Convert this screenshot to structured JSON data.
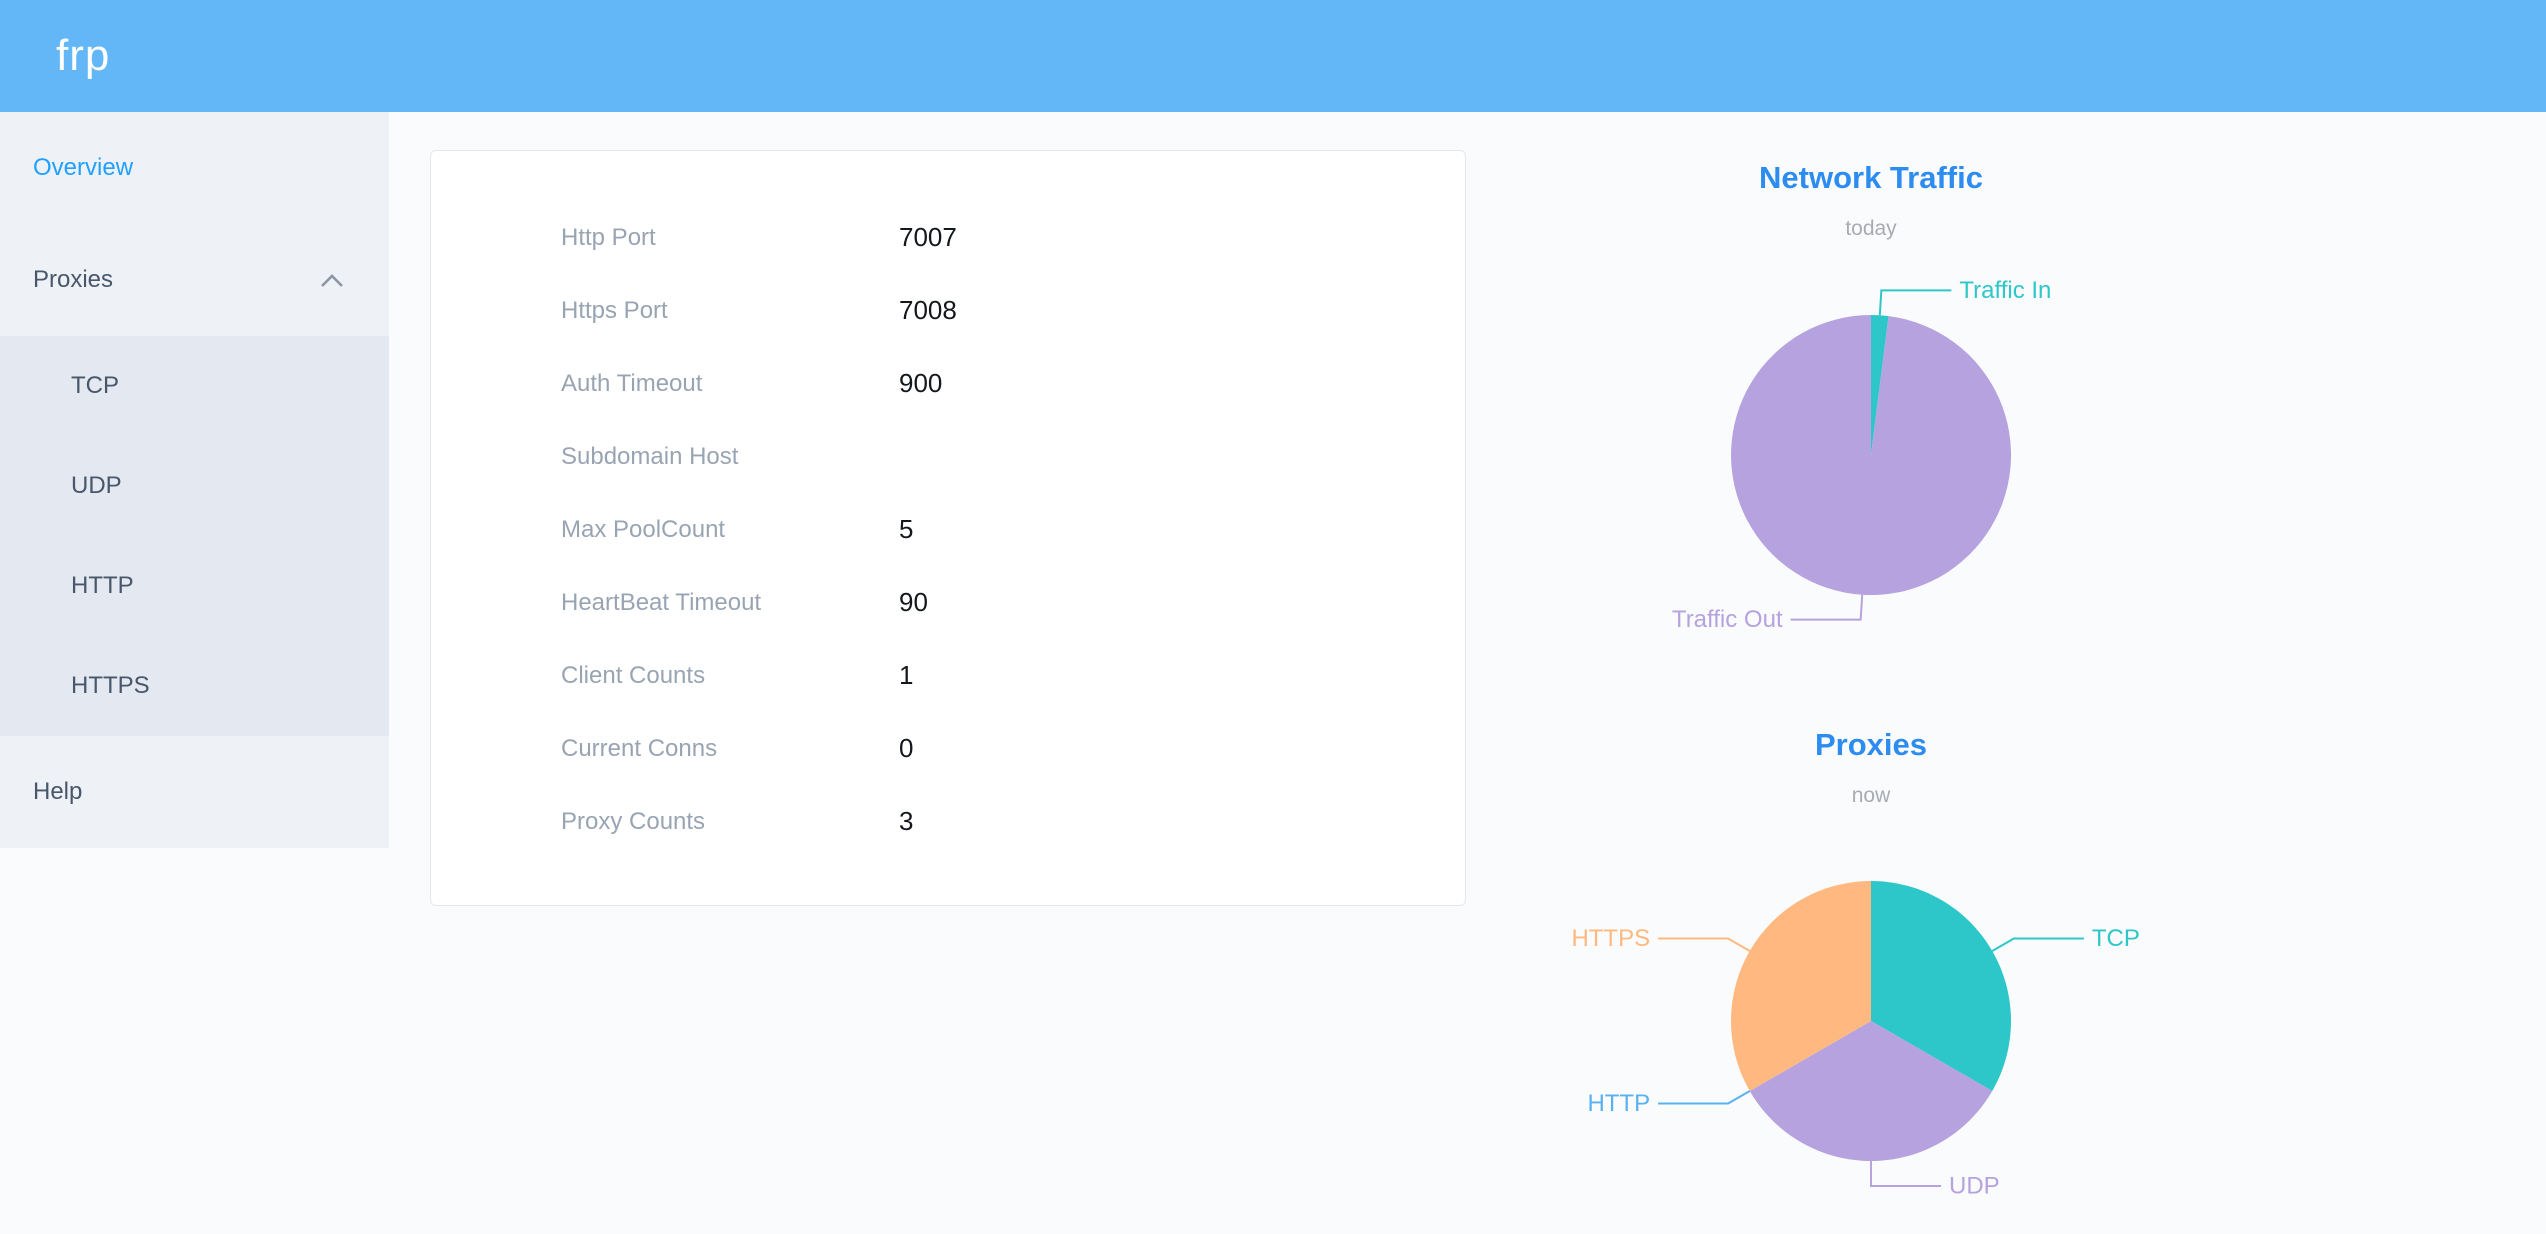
{
  "header": {
    "logo_text": "frp"
  },
  "sidebar": {
    "overview": "Overview",
    "proxies": "Proxies",
    "proxy_types": [
      "TCP",
      "UDP",
      "HTTP",
      "HTTPS"
    ],
    "help": "Help"
  },
  "config": {
    "rows": [
      {
        "label": "Http Port",
        "value": "7007"
      },
      {
        "label": "Https Port",
        "value": "7008"
      },
      {
        "label": "Auth Timeout",
        "value": "900"
      },
      {
        "label": "Subdomain Host",
        "value": ""
      },
      {
        "label": "Max PoolCount",
        "value": "5"
      },
      {
        "label": "HeartBeat Timeout",
        "value": "90"
      },
      {
        "label": "Client Counts",
        "value": "1"
      },
      {
        "label": "Current Conns",
        "value": "0"
      },
      {
        "label": "Proxy Counts",
        "value": "3"
      }
    ]
  },
  "chart_data": [
    {
      "type": "pie",
      "title": "Network Traffic",
      "subtitle": "today",
      "legend_position": "none",
      "slices": [
        {
          "name": "Traffic In",
          "value": 2,
          "color": "#2ec7c9"
        },
        {
          "name": "Traffic Out",
          "value": 98,
          "color": "#b6a2de"
        }
      ]
    },
    {
      "type": "pie",
      "title": "Proxies",
      "subtitle": "now",
      "legend_position": "none",
      "slices": [
        {
          "name": "TCP",
          "value": 1,
          "color": "#2ec7c9"
        },
        {
          "name": "UDP",
          "value": 1,
          "color": "#b6a2de"
        },
        {
          "name": "HTTP",
          "value": 0,
          "color": "#5ab1ef"
        },
        {
          "name": "HTTPS",
          "value": 1,
          "color": "#ffb980"
        }
      ]
    }
  ],
  "colors": {
    "header_bg": "#63b7f7",
    "sidebar_bg": "#eef1f6",
    "submenu_bg": "#e4e8f1",
    "active_link": "#20a0ff",
    "chart_title": "#2d8cf0"
  }
}
